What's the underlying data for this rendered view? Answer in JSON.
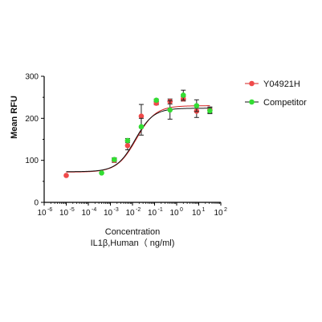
{
  "chart_data": {
    "type": "scatter",
    "xscale": "log",
    "xlim": [
      1e-06,
      100
    ],
    "ylim": [
      0,
      300
    ],
    "ylabel": "Mean RFU",
    "xlabel_line1": "Concentration",
    "xlabel_line2": "IL1β,Human（ ng/ml)",
    "x_tick_labels": [
      "10",
      "10",
      "10",
      "10",
      "10",
      "10",
      "10",
      "10",
      "10"
    ],
    "x_tick_exponents": [
      "-6",
      "-5",
      "-4",
      "-3",
      "-2",
      "-1",
      "0",
      "1",
      "2"
    ],
    "y_tick_labels": [
      "0",
      "100",
      "200",
      "300"
    ],
    "y_ticks": [
      0,
      100,
      200,
      300
    ],
    "legend_position": "top-right",
    "series": [
      {
        "name": "Y04921H",
        "color": "#f04a4a",
        "curve_color": "#d02020",
        "curve": {
          "bottom": 72,
          "top": 230,
          "ec50": 0.015,
          "hill": 1.0
        },
        "points": [
          {
            "x": 1e-05,
            "y": 64,
            "err": 0
          },
          {
            "x": 0.0015,
            "y": 100,
            "err": 5
          },
          {
            "x": 0.006,
            "y": 135,
            "err": 10
          },
          {
            "x": 0.025,
            "y": 205,
            "err": 28
          },
          {
            "x": 0.12,
            "y": 236,
            "err": 4
          },
          {
            "x": 0.5,
            "y": 240,
            "err": 6
          },
          {
            "x": 2.0,
            "y": 246,
            "err": 5
          },
          {
            "x": 8.0,
            "y": 217,
            "err": 15
          },
          {
            "x": 32.0,
            "y": 220,
            "err": 7
          }
        ]
      },
      {
        "name": "Competitor",
        "color": "#33dd33",
        "curve_color": "#111111",
        "curve": {
          "bottom": 73,
          "top": 224,
          "ec50": 0.013,
          "hill": 1.05
        },
        "points": [
          {
            "x": 0.0004,
            "y": 70,
            "err": 0
          },
          {
            "x": 0.0015,
            "y": 102,
            "err": 4
          },
          {
            "x": 0.006,
            "y": 147,
            "err": 5
          },
          {
            "x": 0.025,
            "y": 180,
            "err": 20
          },
          {
            "x": 0.12,
            "y": 243,
            "err": 3
          },
          {
            "x": 0.5,
            "y": 220,
            "err": 22
          },
          {
            "x": 2.0,
            "y": 255,
            "err": 12
          },
          {
            "x": 8.0,
            "y": 230,
            "err": 14
          },
          {
            "x": 32.0,
            "y": 218,
            "err": 7
          }
        ]
      }
    ]
  }
}
